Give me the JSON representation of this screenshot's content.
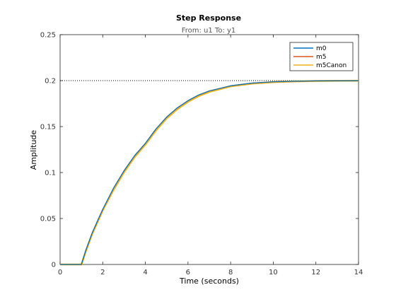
{
  "chart_data": {
    "type": "line",
    "title": "Step Response",
    "subtitle": "From: u1  To: y1",
    "xlabel": "Time (seconds)",
    "ylabel": "Amplitude",
    "xlim": [
      0,
      14
    ],
    "ylim": [
      0,
      0.25
    ],
    "xticks": [
      0,
      2,
      4,
      6,
      8,
      10,
      12,
      14
    ],
    "yticks": [
      0,
      0.05,
      0.1,
      0.15,
      0.2,
      0.25
    ],
    "ytick_labels": [
      "0",
      "0.05",
      "0.1",
      "0.15",
      "0.2",
      "0.25"
    ],
    "grid": false,
    "legend_position": "top-right",
    "steady_state": 0.2,
    "colors": {
      "m0": "#0072bd",
      "m5": "#d95319",
      "m5Canon": "#edb120",
      "reference": "#000000"
    },
    "x": [
      0,
      1,
      1.2,
      1.5,
      2,
      2.5,
      3,
      3.5,
      4,
      4.5,
      5,
      5.5,
      6,
      6.5,
      7,
      8,
      9,
      10,
      11,
      12,
      13,
      14
    ],
    "series": [
      {
        "name": "m0",
        "values": [
          0,
          0,
          0.015,
          0.034,
          0.06,
          0.0827,
          0.102,
          0.1185,
          0.1318,
          0.1475,
          0.1604,
          0.1704,
          0.1782,
          0.1844,
          0.1888,
          0.1944,
          0.1973,
          0.1987,
          0.1993,
          0.1997,
          0.1998,
          0.1999
        ]
      },
      {
        "name": "m5",
        "values": [
          0,
          0,
          0.015,
          0.034,
          0.06,
          0.0827,
          0.102,
          0.1185,
          0.1318,
          0.1475,
          0.1604,
          0.1704,
          0.1782,
          0.1844,
          0.1888,
          0.1944,
          0.1973,
          0.1987,
          0.1993,
          0.1997,
          0.1998,
          0.1999
        ]
      },
      {
        "name": "m5Canon",
        "values": [
          0,
          0,
          0.014,
          0.033,
          0.059,
          0.081,
          0.1005,
          0.117,
          0.1305,
          0.146,
          0.159,
          0.169,
          0.177,
          0.1832,
          0.1878,
          0.1938,
          0.1968,
          0.1984,
          0.1992,
          0.1996,
          0.1998,
          0.1999
        ]
      }
    ]
  }
}
